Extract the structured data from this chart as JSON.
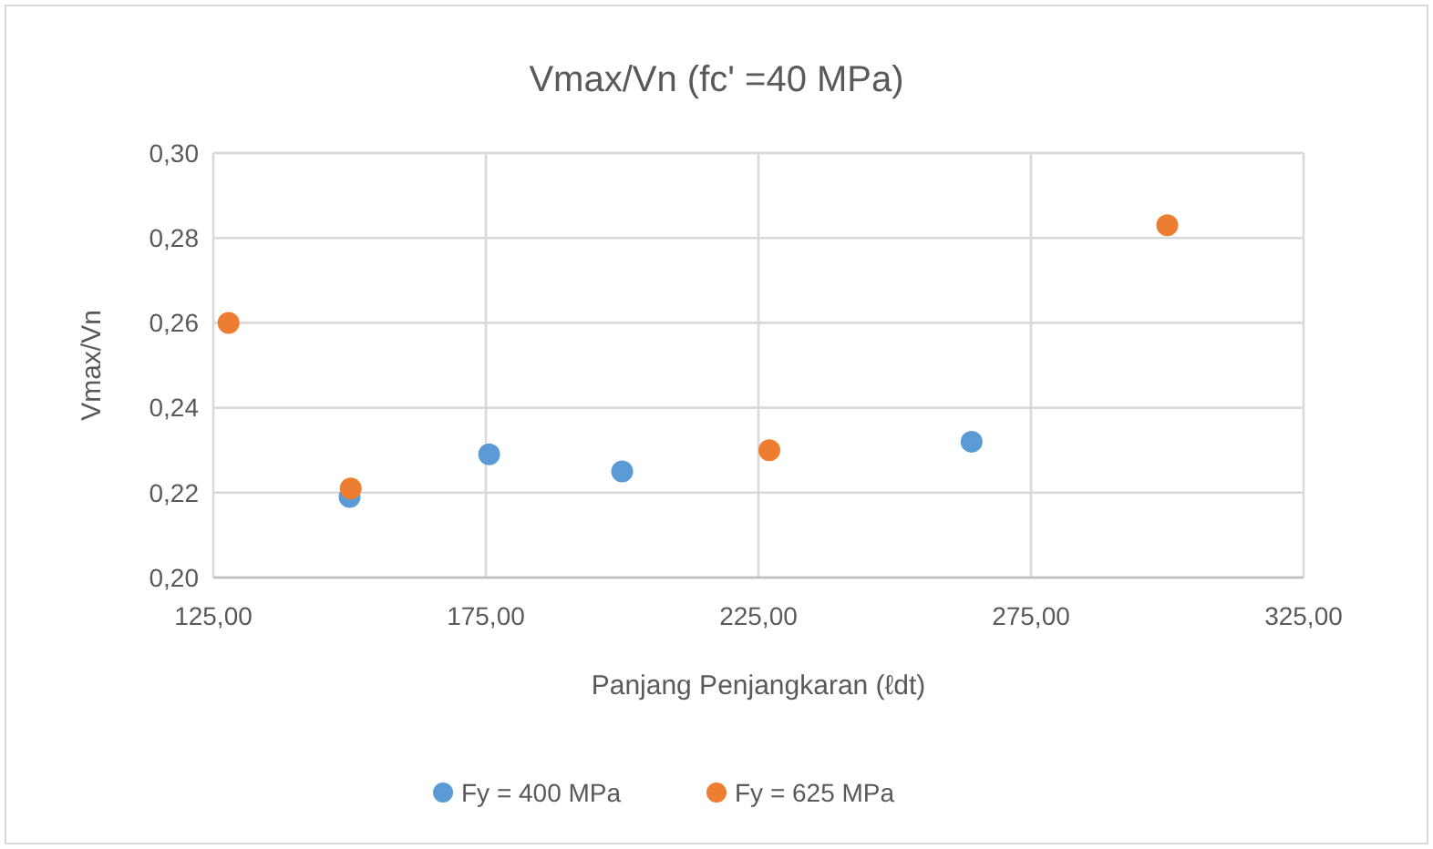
{
  "chart_data": {
    "type": "scatter",
    "title": "Vmax/Vn (fc' =40 MPa)",
    "xlabel": "Panjang Penjangkaran (ℓdt)",
    "ylabel": "Vmax/Vn",
    "xlim": [
      125,
      325
    ],
    "xticks": [
      {
        "value": 125,
        "label": "125,00"
      },
      {
        "value": 175,
        "label": "175,00"
      },
      {
        "value": 225,
        "label": "225,00"
      },
      {
        "value": 275,
        "label": "275,00"
      },
      {
        "value": 325,
        "label": "325,00"
      }
    ],
    "ylim": [
      0.2,
      0.3
    ],
    "yticks": [
      {
        "value": 0.2,
        "label": "0,20"
      },
      {
        "value": 0.22,
        "label": "0,22"
      },
      {
        "value": 0.24,
        "label": "0,24"
      },
      {
        "value": 0.26,
        "label": "0,26"
      },
      {
        "value": 0.28,
        "label": "0,28"
      },
      {
        "value": 0.3,
        "label": "0,30"
      }
    ],
    "grid": true,
    "legend": "bottom",
    "marker": "circle",
    "series": [
      {
        "name": "Fy = 400 MPa",
        "color": "#5b9bd5",
        "x": [
          150,
          175.6,
          200,
          264.1
        ],
        "values": [
          0.219,
          0.229,
          0.225,
          0.232
        ]
      },
      {
        "name": "Fy = 625 MPa",
        "color": "#ed7d31",
        "x": [
          127.8,
          150.2,
          227,
          300
        ],
        "values": [
          0.26,
          0.221,
          0.23,
          0.283
        ]
      }
    ]
  }
}
